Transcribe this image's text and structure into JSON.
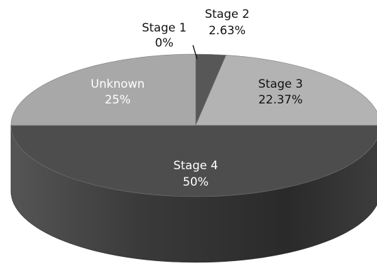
{
  "chart_data": {
    "type": "pie",
    "style": "3d",
    "title": "",
    "slices": [
      {
        "label": "Stage 1",
        "value": 0,
        "pct_label": "0%",
        "color": "#4a4a4a"
      },
      {
        "label": "Stage 2",
        "value": 2.63,
        "pct_label": "2.63%",
        "color": "#575757"
      },
      {
        "label": "Stage 3",
        "value": 22.37,
        "pct_label": "22.37%",
        "color": "#b3b3b3"
      },
      {
        "label": "Stage 4",
        "value": 50,
        "pct_label": "50%",
        "color": "#4d4d4d"
      },
      {
        "label": "Unknown",
        "value": 25,
        "pct_label": "25%",
        "color": "#a8a8a8"
      }
    ]
  },
  "colors": {
    "side": "#333333",
    "label_dark": "#111111",
    "label_light": "#ffffff"
  }
}
